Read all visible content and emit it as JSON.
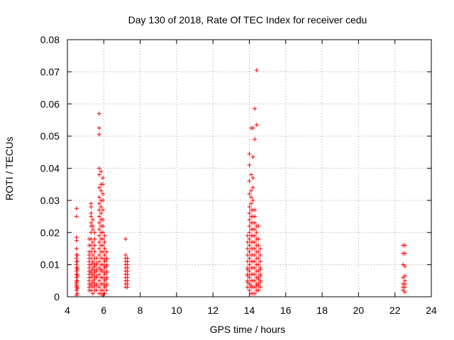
{
  "chart_data": {
    "type": "scatter",
    "title": "Day 130 of 2018, Rate Of TEC Index for receiver cedu",
    "xlabel": "GPS time / hours",
    "ylabel": "ROTI / TECUs",
    "xlim": [
      4,
      24
    ],
    "ylim": [
      0,
      0.08
    ],
    "xticks": [
      "4",
      "6",
      "8",
      "10",
      "12",
      "14",
      "16",
      "18",
      "20",
      "22",
      "24"
    ],
    "yticks": [
      "0",
      "0.01",
      "0.02",
      "0.03",
      "0.04",
      "0.05",
      "0.06",
      "0.07",
      "0.08"
    ],
    "grid": true,
    "marker": "+",
    "color": "#ff0000",
    "series": [
      {
        "name": "ROTI",
        "x": [
          4.5,
          4.5,
          4.5,
          4.5,
          4.5,
          4.5,
          4.5,
          4.5,
          4.5,
          4.5,
          4.5,
          4.5,
          4.5,
          4.5,
          4.5,
          4.5,
          4.5,
          4.5,
          4.5,
          4.5,
          4.55,
          4.55,
          4.55,
          4.55,
          4.55,
          4.55,
          4.55,
          4.55,
          4.55,
          4.55,
          5.2,
          5.2,
          5.2,
          5.2,
          5.2,
          5.2,
          5.2,
          5.2,
          5.2,
          5.2,
          5.2,
          5.2,
          5.2,
          5.2,
          5.2,
          5.3,
          5.3,
          5.3,
          5.3,
          5.3,
          5.3,
          5.3,
          5.3,
          5.3,
          5.3,
          5.3,
          5.3,
          5.3,
          5.3,
          5.3,
          5.3,
          5.3,
          5.3,
          5.4,
          5.4,
          5.4,
          5.4,
          5.4,
          5.4,
          5.4,
          5.4,
          5.4,
          5.4,
          5.4,
          5.4,
          5.4,
          5.4,
          5.4,
          5.4,
          5.5,
          5.5,
          5.5,
          5.5,
          5.5,
          5.5,
          5.5,
          5.5,
          5.5,
          5.5,
          5.5,
          5.5,
          5.5,
          5.5,
          5.6,
          5.6,
          5.6,
          5.6,
          5.6,
          5.6,
          5.6,
          5.6,
          5.6,
          5.6,
          5.75,
          5.75,
          5.75,
          5.75,
          5.75,
          5.75,
          5.75,
          5.75,
          5.75,
          5.75,
          5.75,
          5.75,
          5.75,
          5.75,
          5.75,
          5.75,
          5.75,
          5.75,
          5.75,
          5.75,
          5.75,
          5.75,
          5.85,
          5.85,
          5.85,
          5.85,
          5.85,
          5.85,
          5.85,
          5.85,
          5.85,
          5.85,
          5.85,
          5.85,
          5.85,
          5.85,
          5.85,
          5.85,
          5.85,
          5.85,
          5.85,
          5.85,
          5.95,
          5.95,
          5.95,
          5.95,
          5.95,
          5.95,
          5.95,
          5.95,
          5.95,
          5.95,
          5.95,
          5.95,
          5.95,
          5.95,
          5.95,
          5.95,
          5.95,
          5.95,
          6.05,
          6.05,
          6.05,
          6.05,
          6.05,
          6.05,
          6.05,
          6.05,
          6.05,
          6.05,
          6.05,
          6.05,
          6.05,
          6.05,
          6.05,
          6.15,
          6.15,
          6.15,
          6.15,
          6.15,
          6.15,
          6.15,
          6.15,
          6.15,
          6.15,
          6.15,
          6.15,
          7.2,
          7.2,
          7.2,
          7.2,
          7.2,
          7.2,
          7.2,
          7.2,
          7.2,
          7.2,
          7.2,
          7.2,
          7.3,
          7.3,
          7.3,
          7.3,
          7.3,
          7.3,
          7.3,
          7.3,
          7.3,
          7.3,
          13.9,
          13.9,
          13.9,
          13.9,
          13.9,
          13.9,
          13.9,
          13.9,
          13.9,
          13.9,
          13.9,
          13.9,
          14.0,
          14.0,
          14.0,
          14.0,
          14.0,
          14.0,
          14.0,
          14.0,
          14.0,
          14.0,
          14.0,
          14.0,
          14.0,
          14.0,
          14.0,
          14.0,
          14.0,
          14.0,
          14.1,
          14.1,
          14.1,
          14.1,
          14.1,
          14.1,
          14.1,
          14.1,
          14.1,
          14.1,
          14.1,
          14.1,
          14.1,
          14.1,
          14.1,
          14.1,
          14.1,
          14.1,
          14.1,
          14.1,
          14.2,
          14.2,
          14.2,
          14.2,
          14.2,
          14.2,
          14.2,
          14.2,
          14.2,
          14.2,
          14.2,
          14.2,
          14.2,
          14.2,
          14.2,
          14.2,
          14.2,
          14.2,
          14.2,
          14.3,
          14.3,
          14.3,
          14.3,
          14.3,
          14.3,
          14.3,
          14.3,
          14.3,
          14.3,
          14.3,
          14.3,
          14.3,
          14.3,
          14.3,
          14.3,
          14.4,
          14.4,
          14.4,
          14.4,
          14.4,
          14.4,
          14.4,
          14.4,
          14.4,
          14.4,
          14.4,
          14.4,
          14.4,
          14.4,
          14.5,
          14.5,
          14.5,
          14.5,
          14.5,
          14.5,
          14.5,
          14.5,
          14.5,
          14.5,
          14.5,
          14.5,
          14.6,
          14.6,
          14.6,
          14.6,
          14.6,
          14.6,
          14.6,
          14.6,
          14.6,
          14.6,
          22.45,
          22.45,
          22.45,
          22.45,
          22.45,
          22.45,
          22.45,
          22.55,
          22.55,
          22.55,
          22.55,
          22.55,
          22.55,
          22.55,
          22.55
        ],
        "y": [
          0.0005,
          0.002,
          0.003,
          0.004,
          0.005,
          0.006,
          0.007,
          0.008,
          0.009,
          0.01,
          0.011,
          0.012,
          0.013,
          0.015,
          0.0175,
          0.0185,
          0.025,
          0.0275,
          0.0035,
          0.0045,
          0.001,
          0.003,
          0.005,
          0.007,
          0.009,
          0.011,
          0.013,
          0.0065,
          0.0085,
          0.0025,
          0.002,
          0.003,
          0.004,
          0.005,
          0.006,
          0.007,
          0.008,
          0.009,
          0.01,
          0.011,
          0.012,
          0.013,
          0.014,
          0.016,
          0.018,
          0.002,
          0.004,
          0.006,
          0.008,
          0.01,
          0.012,
          0.014,
          0.016,
          0.018,
          0.02,
          0.022,
          0.023,
          0.025,
          0.026,
          0.028,
          0.029,
          0.0035,
          0.0075,
          0.001,
          0.003,
          0.005,
          0.007,
          0.009,
          0.011,
          0.013,
          0.015,
          0.017,
          0.021,
          0.022,
          0.024,
          0.0045,
          0.0065,
          0.0085,
          0.0105,
          0.002,
          0.004,
          0.006,
          0.008,
          0.01,
          0.012,
          0.014,
          0.016,
          0.018,
          0.02,
          0.0035,
          0.0055,
          0.0075,
          0.0095,
          0.002,
          0.004,
          0.006,
          0.008,
          0.01,
          0.012,
          0.0035,
          0.0065,
          0.0085,
          0.0105,
          0.001,
          0.003,
          0.005,
          0.007,
          0.009,
          0.011,
          0.013,
          0.015,
          0.017,
          0.019,
          0.021,
          0.023,
          0.025,
          0.027,
          0.029,
          0.031,
          0.034,
          0.038,
          0.04,
          0.0505,
          0.0525,
          0.057,
          0.001,
          0.002,
          0.004,
          0.006,
          0.008,
          0.01,
          0.012,
          0.014,
          0.016,
          0.018,
          0.02,
          0.022,
          0.024,
          0.026,
          0.028,
          0.03,
          0.033,
          0.035,
          0.039,
          0.0085,
          0.0005,
          0.002,
          0.004,
          0.006,
          0.008,
          0.01,
          0.012,
          0.014,
          0.016,
          0.018,
          0.02,
          0.022,
          0.024,
          0.027,
          0.03,
          0.032,
          0.035,
          0.037,
          0.001,
          0.003,
          0.005,
          0.007,
          0.009,
          0.011,
          0.013,
          0.015,
          0.017,
          0.019,
          0.0035,
          0.0055,
          0.0075,
          0.0095,
          0.0115,
          0.002,
          0.004,
          0.006,
          0.008,
          0.01,
          0.012,
          0.014,
          0.0035,
          0.0055,
          0.0075,
          0.0095,
          0.0115,
          0.003,
          0.004,
          0.005,
          0.006,
          0.007,
          0.008,
          0.009,
          0.01,
          0.011,
          0.012,
          0.013,
          0.018,
          0.003,
          0.004,
          0.005,
          0.006,
          0.007,
          0.008,
          0.009,
          0.01,
          0.011,
          0.012,
          0.003,
          0.005,
          0.007,
          0.009,
          0.011,
          0.013,
          0.015,
          0.017,
          0.019,
          0.0045,
          0.0065,
          0.0085,
          0.002,
          0.004,
          0.006,
          0.008,
          0.01,
          0.012,
          0.014,
          0.016,
          0.018,
          0.02,
          0.022,
          0.024,
          0.026,
          0.028,
          0.032,
          0.036,
          0.041,
          0.0445,
          0.001,
          0.003,
          0.005,
          0.007,
          0.009,
          0.011,
          0.013,
          0.015,
          0.017,
          0.019,
          0.021,
          0.023,
          0.025,
          0.027,
          0.029,
          0.031,
          0.033,
          0.038,
          0.0525,
          0.0035,
          0.001,
          0.003,
          0.005,
          0.007,
          0.009,
          0.011,
          0.013,
          0.015,
          0.017,
          0.019,
          0.021,
          0.023,
          0.025,
          0.027,
          0.03,
          0.034,
          0.037,
          0.0435,
          0.0525,
          0.001,
          0.003,
          0.005,
          0.007,
          0.009,
          0.011,
          0.013,
          0.015,
          0.017,
          0.019,
          0.021,
          0.023,
          0.025,
          0.027,
          0.049,
          0.0585,
          0.002,
          0.004,
          0.006,
          0.008,
          0.01,
          0.012,
          0.014,
          0.016,
          0.018,
          0.02,
          0.022,
          0.0535,
          0.0705,
          0.0035,
          0.002,
          0.004,
          0.006,
          0.008,
          0.01,
          0.012,
          0.014,
          0.016,
          0.018,
          0.022,
          0.0035,
          0.0055,
          0.003,
          0.005,
          0.007,
          0.009,
          0.011,
          0.013,
          0.015,
          0.0045,
          0.0065,
          0.0085,
          0.002,
          0.003,
          0.004,
          0.006,
          0.01,
          0.0135,
          0.016,
          0.0015,
          0.003,
          0.004,
          0.005,
          0.0065,
          0.0095,
          0.0135,
          0.016
        ]
      }
    ]
  }
}
